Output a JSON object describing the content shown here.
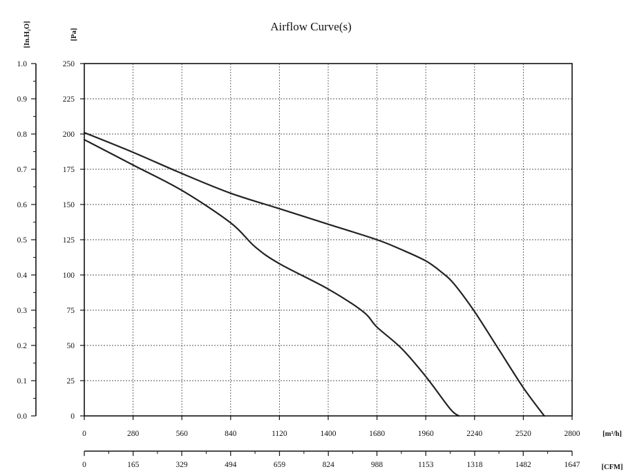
{
  "chart_data": {
    "type": "line",
    "title": "Airflow Curve(s)",
    "x_axis": {
      "unit": "[m³/h]",
      "range": [
        0,
        2800
      ],
      "ticks": [
        0,
        280,
        560,
        840,
        1120,
        1400,
        1680,
        1960,
        2240,
        2520,
        2800
      ]
    },
    "x2_axis": {
      "unit": "[CFM]",
      "range": [
        0,
        1647
      ],
      "ticks": [
        0,
        165,
        329,
        494,
        659,
        824,
        988,
        1153,
        1318,
        1482,
        1647
      ]
    },
    "y_axis": {
      "unit": "[Pa]",
      "range": [
        0,
        250
      ],
      "ticks": [
        0,
        25,
        50,
        75,
        100,
        125,
        150,
        175,
        200,
        225,
        250
      ]
    },
    "y2_axis": {
      "unit": "[In.H₂O]",
      "range": [
        0.0,
        1.0
      ],
      "ticks": [
        "0.0",
        "0.1",
        "0.2",
        "0.3",
        "0.4",
        "0.5",
        "0.6",
        "0.7",
        "0.8",
        "0.9",
        "1.0"
      ]
    },
    "grid": true,
    "series": [
      {
        "color": "#222222",
        "points": [
          [
            0,
            201
          ],
          [
            280,
            187
          ],
          [
            560,
            172
          ],
          [
            840,
            158
          ],
          [
            1120,
            147
          ],
          [
            1400,
            136
          ],
          [
            1680,
            125
          ],
          [
            1820,
            118
          ],
          [
            1960,
            110
          ],
          [
            2050,
            102
          ],
          [
            2120,
            94
          ],
          [
            2240,
            74
          ],
          [
            2380,
            47
          ],
          [
            2520,
            20
          ],
          [
            2640,
            0
          ]
        ]
      },
      {
        "color": "#222222",
        "points": [
          [
            0,
            196
          ],
          [
            280,
            178
          ],
          [
            560,
            160
          ],
          [
            840,
            137
          ],
          [
            980,
            120
          ],
          [
            1120,
            108
          ],
          [
            1400,
            90
          ],
          [
            1600,
            74
          ],
          [
            1680,
            63
          ],
          [
            1820,
            48
          ],
          [
            1960,
            28
          ],
          [
            2100,
            5
          ],
          [
            2150,
            0
          ]
        ]
      }
    ]
  }
}
